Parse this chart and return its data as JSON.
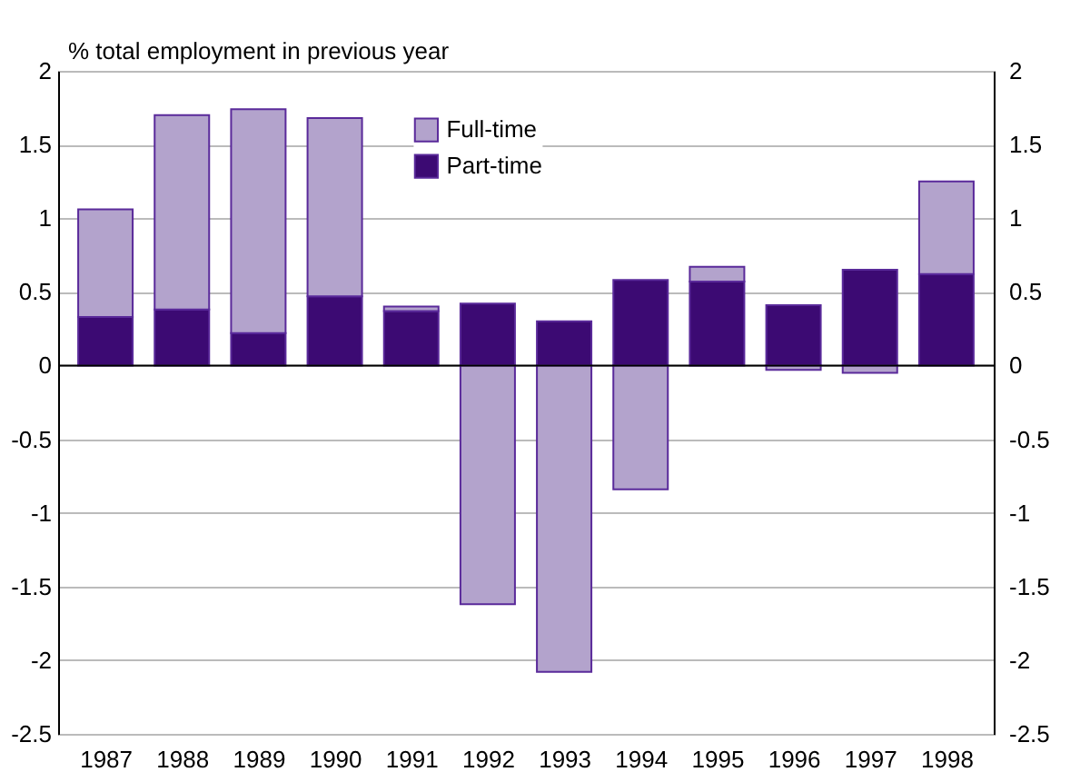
{
  "chart_data": {
    "type": "bar",
    "stacked": true,
    "ylabel": "% total employment in previous year",
    "categories": [
      "1987",
      "1988",
      "1989",
      "1990",
      "1991",
      "1992",
      "1993",
      "1994",
      "1995",
      "1996",
      "1997",
      "1998"
    ],
    "series": [
      {
        "name": "Part-time",
        "color": "#3c0a73",
        "values": [
          0.33,
          0.38,
          0.22,
          0.47,
          0.37,
          0.42,
          0.3,
          0.58,
          0.57,
          0.41,
          0.65,
          0.62
        ]
      },
      {
        "name": "Full-time",
        "color": "#b3a3cc",
        "values": [
          0.73,
          1.32,
          1.52,
          1.21,
          0.03,
          -1.62,
          -2.08,
          -0.84,
          0.1,
          -0.03,
          -0.05,
          0.63
        ]
      }
    ],
    "ylim": [
      -2.5,
      2
    ],
    "yticks": [
      -2.5,
      -2,
      -1.5,
      -1,
      -0.5,
      0,
      0.5,
      1,
      1.5,
      2
    ],
    "y2lim": [
      -2.5,
      2
    ],
    "y2ticks": [
      -2.5,
      -2,
      -1.5,
      -1,
      -0.5,
      0,
      0.5,
      1,
      1.5,
      2
    ],
    "grid": "y",
    "legend": "top"
  }
}
